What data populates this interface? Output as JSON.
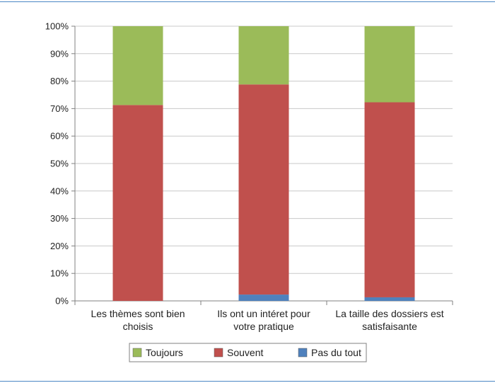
{
  "chart_data": {
    "type": "bar",
    "stacked": true,
    "categories": [
      [
        "Les thèmes sont bien",
        "choisis"
      ],
      [
        "Ils ont un intéret pour",
        "votre pratique"
      ],
      [
        "La taille des dossiers est",
        "satisfaisante"
      ]
    ],
    "series": [
      {
        "name": "Pas du tout",
        "color": "#4f81bd",
        "values": [
          0,
          2.3,
          1.3
        ]
      },
      {
        "name": "Souvent",
        "color": "#c0504d",
        "values": [
          71.3,
          76.5,
          71.0
        ]
      },
      {
        "name": "Toujours",
        "color": "#9bbb59",
        "values": [
          28.7,
          21.2,
          27.7
        ]
      }
    ],
    "legend_order": [
      "Toujours",
      "Souvent",
      "Pas du tout"
    ],
    "ylim": [
      0,
      100
    ],
    "yticks": [
      0,
      10,
      20,
      30,
      40,
      50,
      60,
      70,
      80,
      90,
      100
    ],
    "ytick_format": "%",
    "grid": true,
    "legend_position": "bottom",
    "title": "",
    "xlabel": "",
    "ylabel": ""
  }
}
